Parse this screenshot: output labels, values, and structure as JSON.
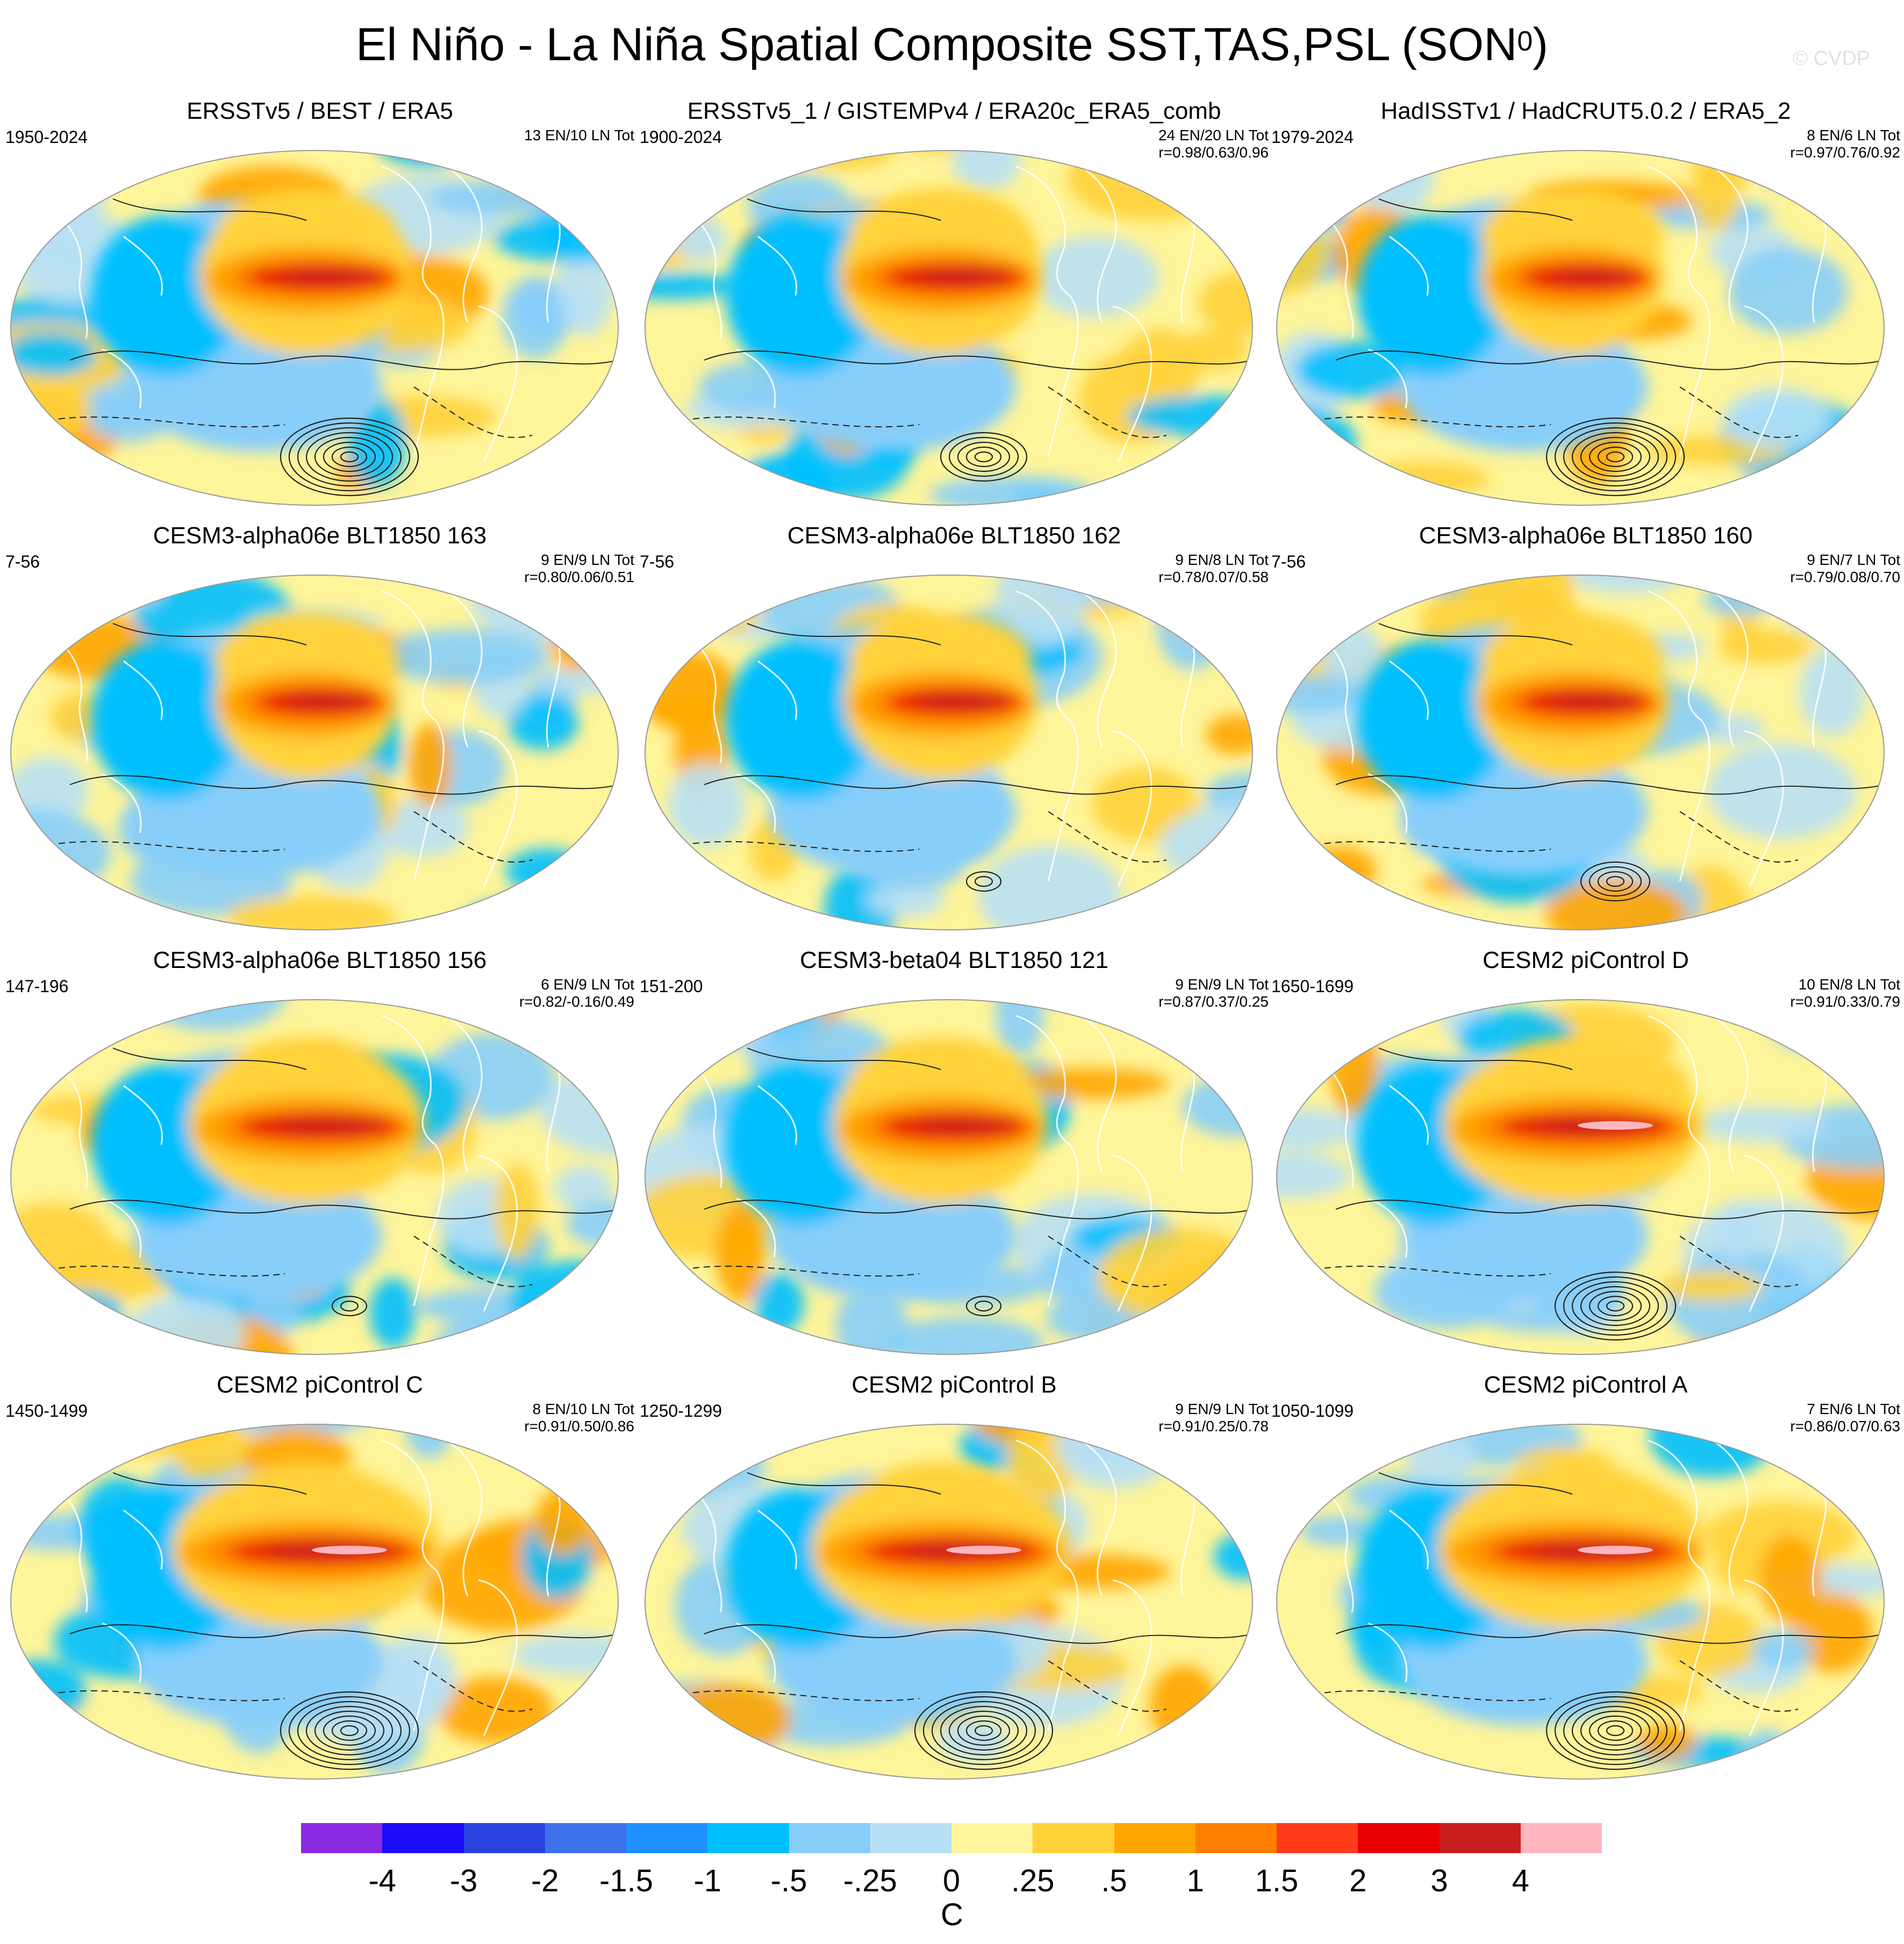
{
  "title": "El Niño - La Niña Spatial Composite SST,TAS,PSL (SON",
  "title_superscript": "0",
  "title_suffix": ")",
  "watermark": "© CVDP",
  "panels": [
    {
      "title": "ERSSTv5 / BEST / ERA5",
      "period": "1950-2024",
      "events": "13 EN/10 LN Tot",
      "corr": "",
      "style": {
        "warm": 1.0,
        "south_low": 1.0
      }
    },
    {
      "title": "ERSSTv5_1 / GISTEMPv4 / ERA20c_ERA5_comb",
      "period": "1900-2024",
      "events": "24 EN/20 LN Tot",
      "corr": "r=0.98/0.63/0.96",
      "style": {
        "warm": 0.95,
        "south_low": 0.6
      }
    },
    {
      "title": "HadISSTv1 / HadCRUT5.0.2 / ERA5_2",
      "period": "1979-2024",
      "events": "8 EN/6 LN Tot",
      "corr": "r=0.97/0.76/0.92",
      "style": {
        "warm": 0.85,
        "south_low": 1.0
      }
    },
    {
      "title": "CESM3-alpha06e BLT1850 163",
      "period": "7-56",
      "events": "9 EN/9 LN Tot",
      "corr": "r=0.80/0.06/0.51",
      "style": {
        "warm": 0.85,
        "south_low": 0.0
      }
    },
    {
      "title": "CESM3-alpha06e BLT1850 162",
      "period": "7-56",
      "events": "9 EN/8 LN Tot",
      "corr": "r=0.78/0.07/0.58",
      "style": {
        "warm": 0.9,
        "south_low": 0.3
      }
    },
    {
      "title": "CESM3-alpha06e BLT1850 160",
      "period": "7-56",
      "events": "9 EN/7 LN Tot",
      "corr": "r=0.79/0.08/0.70",
      "style": {
        "warm": 0.9,
        "south_low": 0.5
      }
    },
    {
      "title": "CESM3-alpha06e BLT1850 156",
      "period": "147-196",
      "events": "6 EN/9 LN Tot",
      "corr": "r=0.82/-0.16/0.49",
      "style": {
        "warm": 1.1,
        "south_low": 0.3
      }
    },
    {
      "title": "CESM3-beta04 BLT1850 121",
      "period": "151-200",
      "events": "9 EN/9 LN Tot",
      "corr": "r=0.87/0.37/0.25",
      "style": {
        "warm": 1.0,
        "south_low": 0.2
      }
    },
    {
      "title": "CESM2 piControl D",
      "period": "1650-1699",
      "events": "10 EN/8 LN Tot",
      "corr": "r=0.91/0.33/0.79",
      "style": {
        "warm": 1.2,
        "south_low": 0.9
      }
    },
    {
      "title": "CESM2 piControl C",
      "period": "1450-1499",
      "events": "8 EN/10 LN Tot",
      "corr": "r=0.91/0.50/0.86",
      "style": {
        "warm": 1.25,
        "south_low": 1.0
      }
    },
    {
      "title": "CESM2 piControl B",
      "period": "1250-1299",
      "events": "9 EN/9 LN Tot",
      "corr": "r=0.91/0.25/0.78",
      "style": {
        "warm": 1.2,
        "south_low": 1.0
      }
    },
    {
      "title": "CESM2 piControl A",
      "period": "1050-1099",
      "events": "7 EN/6 LN Tot",
      "corr": "r=0.86/0.07/0.63",
      "style": {
        "warm": 1.25,
        "south_low": 1.0
      }
    }
  ],
  "colorbar": {
    "colors": [
      "#8a2be2",
      "#1a0cf5",
      "#2a43e0",
      "#3d72ea",
      "#1e90ff",
      "#00bfff",
      "#87cefa",
      "#b8e0f5",
      "#fff59a",
      "#ffd23a",
      "#ffa500",
      "#ff7f00",
      "#ff3b1a",
      "#e80000",
      "#c81e1e",
      "#ffb5c0"
    ],
    "ticks": [
      "-4",
      "-3",
      "-2",
      "-1.5",
      "-1",
      "-.5",
      "-.25",
      "0",
      ".25",
      ".5",
      "1",
      "1.5",
      "2",
      "3",
      "4"
    ],
    "unit": "C"
  }
}
